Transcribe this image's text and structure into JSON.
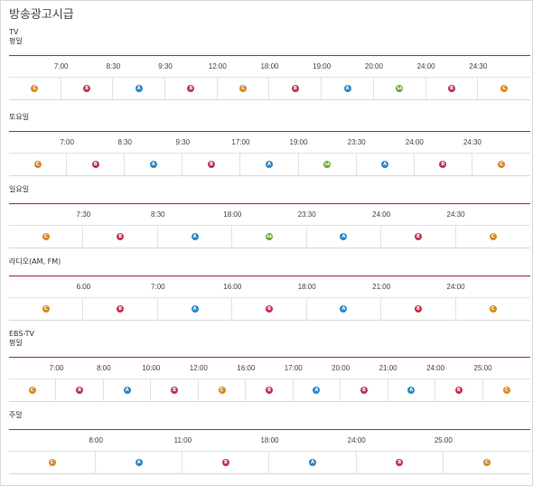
{
  "title": "방송광고시급",
  "grade_colors": {
    "C": "#d98a1f",
    "B": "#c3324f",
    "A": "#2a86c6",
    "SA": "#6aa72a"
  },
  "sections": [
    {
      "label": "TV",
      "sublabel": "평일",
      "times": [
        "7:00",
        "8:30",
        "9:30",
        "12:00",
        "18:00",
        "19:00",
        "20:00",
        "24:00",
        "24:30"
      ],
      "grades": [
        "C",
        "B",
        "A",
        "B",
        "C",
        "B",
        "A",
        "SA",
        "B",
        "C"
      ]
    },
    {
      "label": "토요일",
      "sublabel": "",
      "times": [
        "7:00",
        "8:30",
        "9:30",
        "17:00",
        "19:00",
        "23:30",
        "24:00",
        "24:30"
      ],
      "grades": [
        "C",
        "B",
        "A",
        "B",
        "A",
        "SA",
        "A",
        "B",
        "C"
      ]
    },
    {
      "label": "일요일",
      "sublabel": "",
      "times": [
        "7:30",
        "8:30",
        "18:00",
        "23:30",
        "24:00",
        "24:30"
      ],
      "grades": [
        "C",
        "B",
        "A",
        "SA",
        "A",
        "B",
        "C"
      ]
    },
    {
      "label": "라디오(AM, FM)",
      "sublabel": "",
      "times": [
        "6:00",
        "7:00",
        "16:00",
        "18:00",
        "21:00",
        "24:00"
      ],
      "grades": [
        "C",
        "B",
        "A",
        "B",
        "A",
        "B",
        "C"
      ]
    },
    {
      "label": "EBS-TV",
      "sublabel": "평일",
      "times": [
        "7:00",
        "8:00",
        "10:00",
        "12:00",
        "16:00",
        "17:00",
        "20:00",
        "21:00",
        "24:00",
        "25:00"
      ],
      "grades": [
        "C",
        "B",
        "A",
        "B",
        "C",
        "B",
        "A",
        "B",
        "A",
        "B",
        "C"
      ]
    },
    {
      "label": "주말",
      "sublabel": "",
      "times": [
        "8:00",
        "11:00",
        "18:00",
        "24:00",
        "25:00"
      ],
      "grades": [
        "C",
        "A",
        "B",
        "A",
        "B",
        "C"
      ]
    }
  ]
}
